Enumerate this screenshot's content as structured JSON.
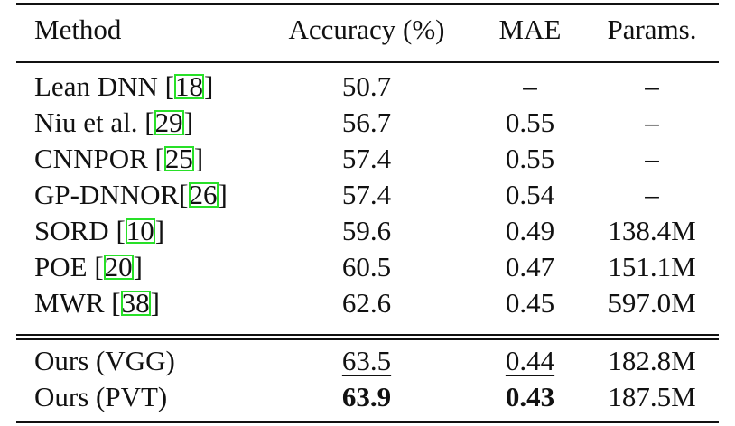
{
  "header": {
    "method": "Method",
    "accuracy": "Accuracy (%)",
    "mae": "MAE",
    "params": "Params."
  },
  "rows": [
    {
      "name": "Lean DNN [",
      "ref": "18",
      "tail": "]",
      "acc": "50.7",
      "mae": "–",
      "params": "–"
    },
    {
      "name": "Niu et al. [",
      "ref": "29",
      "tail": "]",
      "acc": "56.7",
      "mae": "0.55",
      "params": "–"
    },
    {
      "name": "CNNPOR [",
      "ref": "25",
      "tail": "]",
      "acc": "57.4",
      "mae": "0.55",
      "params": "–"
    },
    {
      "name": "GP-DNNOR[",
      "ref": "26",
      "tail": "]",
      "acc": "57.4",
      "mae": "0.54",
      "params": "–"
    },
    {
      "name": "SORD [",
      "ref": "10",
      "tail": "]",
      "acc": "59.6",
      "mae": "0.49",
      "params": "138.4M"
    },
    {
      "name": "POE [",
      "ref": "20",
      "tail": "]",
      "acc": "60.5",
      "mae": "0.47",
      "params": "151.1M"
    },
    {
      "name": "MWR [",
      "ref": "38",
      "tail": "]",
      "acc": "62.6",
      "mae": "0.45",
      "params": "597.0M"
    }
  ],
  "ours": [
    {
      "name": "Ours (VGG)",
      "acc": "63.5",
      "mae": "0.44",
      "params": "182.8M"
    },
    {
      "name": "Ours (PVT)",
      "acc": "63.9",
      "mae": "0.43",
      "params": "187.5M"
    }
  ]
}
